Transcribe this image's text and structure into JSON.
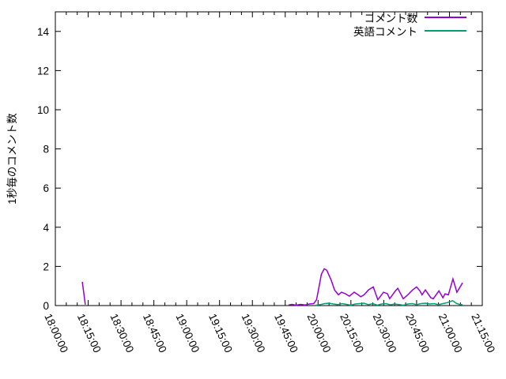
{
  "chart_data": {
    "type": "line",
    "title": "",
    "xlabel": "",
    "ylabel": "1秒毎のコメント数",
    "ylim": [
      0,
      15
    ],
    "xlim_minutes_from_1800": [
      0,
      195
    ],
    "grid": false,
    "legend_position": "top-right-inside",
    "y_ticks": [
      0,
      2,
      4,
      6,
      8,
      10,
      12,
      14
    ],
    "x_minor_tick_step_minutes": 5,
    "x_ticks": [
      {
        "minute": 0,
        "label": "18:00:00"
      },
      {
        "minute": 15,
        "label": "18:15:00"
      },
      {
        "minute": 30,
        "label": "18:30:00"
      },
      {
        "minute": 45,
        "label": "18:45:00"
      },
      {
        "minute": 60,
        "label": "19:00:00"
      },
      {
        "minute": 75,
        "label": "19:15:00"
      },
      {
        "minute": 90,
        "label": "19:30:00"
      },
      {
        "minute": 105,
        "label": "19:45:00"
      },
      {
        "minute": 120,
        "label": "20:00:00"
      },
      {
        "minute": 135,
        "label": "20:15:00"
      },
      {
        "minute": 150,
        "label": "20:30:00"
      },
      {
        "minute": 165,
        "label": "20:45:00"
      },
      {
        "minute": 180,
        "label": "21:00:00"
      },
      {
        "minute": 195,
        "label": "21:15:00"
      }
    ],
    "series": [
      {
        "name": "コメント数",
        "color": "#9400d3",
        "segments": [
          [
            [
              12.3,
              1.21
            ],
            [
              13.7,
              0.05
            ]
          ],
          [
            [
              106.5,
              0.03
            ],
            [
              108,
              0.06
            ],
            [
              110,
              0.02
            ],
            [
              112,
              0.06
            ],
            [
              114,
              0.03
            ],
            [
              116,
              0.08
            ],
            [
              118,
              0.1
            ],
            [
              119.3,
              0.3
            ],
            [
              120.5,
              1.0
            ],
            [
              121.5,
              1.6
            ],
            [
              122.8,
              1.88
            ],
            [
              124,
              1.8
            ],
            [
              126,
              1.3
            ],
            [
              127.5,
              0.8
            ],
            [
              129.3,
              0.55
            ],
            [
              130.7,
              0.68
            ],
            [
              132.5,
              0.6
            ],
            [
              134.3,
              0.48
            ],
            [
              136.5,
              0.68
            ],
            [
              138.3,
              0.55
            ],
            [
              139.5,
              0.45
            ],
            [
              141,
              0.55
            ],
            [
              143,
              0.8
            ],
            [
              145.2,
              0.95
            ],
            [
              147.3,
              0.3
            ],
            [
              149.9,
              0.68
            ],
            [
              151.7,
              0.6
            ],
            [
              152.7,
              0.35
            ],
            [
              155.3,
              0.75
            ],
            [
              156.4,
              0.88
            ],
            [
              158.9,
              0.35
            ],
            [
              160.5,
              0.5
            ],
            [
              163.2,
              0.8
            ],
            [
              165,
              0.95
            ],
            [
              166.5,
              0.75
            ],
            [
              167.5,
              0.55
            ],
            [
              169,
              0.8
            ],
            [
              171.5,
              0.4
            ],
            [
              172.6,
              0.35
            ],
            [
              175.2,
              0.75
            ],
            [
              177,
              0.4
            ],
            [
              178,
              0.6
            ],
            [
              179.5,
              0.55
            ],
            [
              181.6,
              1.36
            ],
            [
              183.4,
              0.68
            ],
            [
              186,
              1.16
            ]
          ]
        ]
      },
      {
        "name": "英語コメント",
        "color": "#009e73",
        "segments": [
          [
            [
              119,
              0.02
            ],
            [
              121,
              0.05
            ],
            [
              123,
              0.1
            ],
            [
              125,
              0.12
            ],
            [
              127,
              0.08
            ],
            [
              129,
              0.05
            ],
            [
              131,
              0.1
            ],
            [
              133,
              0.06
            ],
            [
              135,
              0.02
            ],
            [
              137,
              0.08
            ],
            [
              139,
              0.1
            ],
            [
              141,
              0.12
            ],
            [
              143,
              0.05
            ],
            [
              145,
              0.1
            ],
            [
              147,
              0.02
            ],
            [
              149,
              0.08
            ],
            [
              151,
              0.1
            ],
            [
              153,
              0.04
            ],
            [
              155,
              0.08
            ],
            [
              157,
              0.05
            ],
            [
              159,
              0.02
            ],
            [
              161,
              0.08
            ],
            [
              163,
              0.1
            ],
            [
              165,
              0.05
            ],
            [
              167,
              0.1
            ],
            [
              169,
              0.12
            ],
            [
              171,
              0.08
            ],
            [
              173,
              0.1
            ],
            [
              175,
              0.05
            ],
            [
              177,
              0.1
            ],
            [
              179,
              0.15
            ],
            [
              181.5,
              0.25
            ],
            [
              183,
              0.12
            ],
            [
              184.5,
              0.06
            ],
            [
              186,
              0.04
            ]
          ]
        ]
      }
    ]
  }
}
